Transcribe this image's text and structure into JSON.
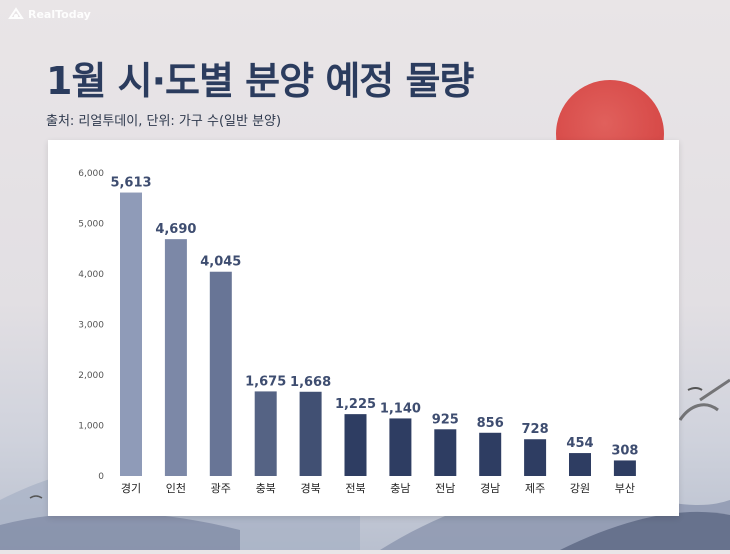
{
  "brand": {
    "name": "RealToday"
  },
  "header": {
    "title": "1월 시·도별 분양 예정 물량",
    "source": "출처: 리얼투데이, 단위: 가구 수(일반 분양)"
  },
  "colors": {
    "bar_start": "#8f9bb8",
    "bar_end": "#2e3d62",
    "label": "#3e4d70",
    "axis_text": "#555555",
    "title": "#2b3c5e"
  },
  "chart_data": {
    "type": "bar",
    "categories": [
      "경기",
      "인천",
      "광주",
      "충북",
      "경북",
      "전북",
      "충남",
      "전남",
      "경남",
      "제주",
      "강원",
      "부산"
    ],
    "values": [
      5613,
      4690,
      4045,
      1675,
      1668,
      1225,
      1140,
      925,
      856,
      728,
      454,
      308
    ],
    "value_labels": [
      "5,613",
      "4,690",
      "4,045",
      "1,675",
      "1,668",
      "1,225",
      "1,140",
      "925",
      "856",
      "728",
      "454",
      "308"
    ],
    "yticks": [
      0,
      1000,
      2000,
      3000,
      4000,
      5000,
      6000
    ],
    "ytick_labels": [
      "0",
      "1,000",
      "2,000",
      "3,000",
      "4,000",
      "5,000",
      "6,000"
    ],
    "ylim": [
      0,
      6000
    ],
    "grid": false,
    "legend": "none"
  }
}
